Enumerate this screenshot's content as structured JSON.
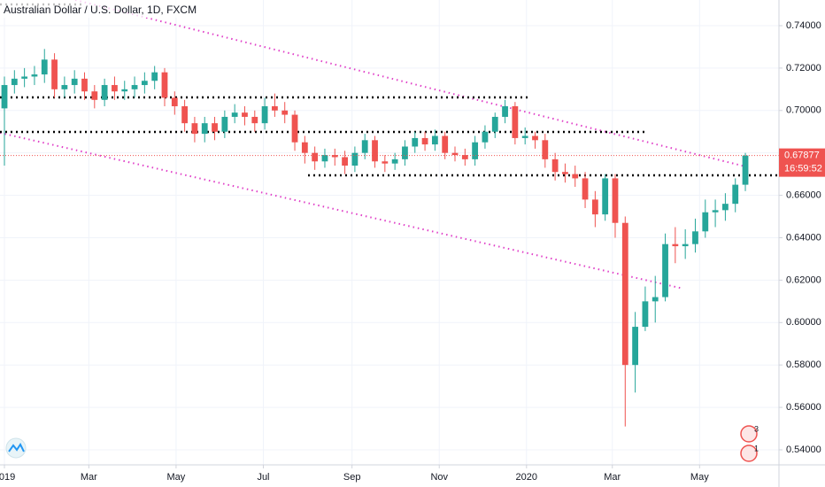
{
  "chart_data": {
    "type": "candlestick",
    "title": "Australian Dollar / U.S. Dollar, 1D, FXCM",
    "up_color": "#26a69a",
    "down_color": "#ef5350",
    "grid": true,
    "x": [
      0,
      7,
      14,
      21,
      28,
      35,
      42,
      49,
      56,
      63,
      70,
      77,
      84,
      91,
      98,
      105,
      112,
      119,
      126,
      133,
      140,
      147,
      154,
      161,
      168,
      175,
      182,
      189,
      196,
      203,
      210,
      217,
      224,
      231,
      238,
      245,
      252,
      259,
      266,
      273,
      280,
      287,
      294,
      301,
      308,
      315,
      322,
      329,
      336,
      343,
      350,
      357,
      364,
      371,
      378,
      385,
      392,
      399,
      406,
      413,
      420,
      427,
      434,
      441,
      448,
      455,
      462,
      469,
      476,
      483,
      490,
      497,
      504,
      511,
      518
    ],
    "opens": [
      0.701,
      0.712,
      0.715,
      0.716,
      0.717,
      0.724,
      0.71,
      0.712,
      0.715,
      0.709,
      0.705,
      0.712,
      0.709,
      0.71,
      0.712,
      0.714,
      0.718,
      0.706,
      0.702,
      0.694,
      0.689,
      0.694,
      0.69,
      0.697,
      0.699,
      0.697,
      0.694,
      0.702,
      0.7,
      0.698,
      0.685,
      0.68,
      0.676,
      0.679,
      0.678,
      0.674,
      0.68,
      0.686,
      0.676,
      0.675,
      0.677,
      0.683,
      0.687,
      0.684,
      0.688,
      0.68,
      0.679,
      0.677,
      0.685,
      0.69,
      0.697,
      0.702,
      0.687,
      0.688,
      0.686,
      0.677,
      0.671,
      0.67,
      0.668,
      0.658,
      0.651,
      0.668,
      0.647,
      0.58,
      0.598,
      0.61,
      0.612,
      0.637,
      0.636,
      0.637,
      0.643,
      0.652,
      0.653,
      0.656,
      0.665
    ],
    "highs": [
      0.716,
      0.719,
      0.72,
      0.721,
      0.729,
      0.727,
      0.716,
      0.719,
      0.718,
      0.712,
      0.715,
      0.716,
      0.714,
      0.716,
      0.718,
      0.721,
      0.72,
      0.709,
      0.705,
      0.697,
      0.697,
      0.697,
      0.7,
      0.703,
      0.702,
      0.7,
      0.706,
      0.708,
      0.704,
      0.7,
      0.688,
      0.683,
      0.682,
      0.682,
      0.681,
      0.683,
      0.689,
      0.688,
      0.679,
      0.68,
      0.686,
      0.69,
      0.69,
      0.691,
      0.69,
      0.683,
      0.682,
      0.688,
      0.693,
      0.699,
      0.705,
      0.704,
      0.692,
      0.69,
      0.689,
      0.68,
      0.675,
      0.674,
      0.671,
      0.662,
      0.67,
      0.67,
      0.65,
      0.605,
      0.617,
      0.622,
      0.642,
      0.645,
      0.644,
      0.649,
      0.658,
      0.658,
      0.661,
      0.668,
      0.68
    ],
    "lows": [
      0.674,
      0.708,
      0.711,
      0.712,
      0.713,
      0.706,
      0.706,
      0.708,
      0.705,
      0.701,
      0.702,
      0.705,
      0.705,
      0.706,
      0.708,
      0.71,
      0.702,
      0.698,
      0.69,
      0.685,
      0.685,
      0.686,
      0.687,
      0.694,
      0.693,
      0.69,
      0.691,
      0.697,
      0.694,
      0.681,
      0.675,
      0.672,
      0.673,
      0.674,
      0.67,
      0.671,
      0.677,
      0.673,
      0.671,
      0.672,
      0.674,
      0.68,
      0.681,
      0.681,
      0.677,
      0.676,
      0.674,
      0.674,
      0.682,
      0.687,
      0.694,
      0.684,
      0.684,
      0.682,
      0.673,
      0.667,
      0.666,
      0.664,
      0.654,
      0.645,
      0.648,
      0.64,
      0.551,
      0.567,
      0.596,
      0.6,
      0.61,
      0.628,
      0.63,
      0.633,
      0.64,
      0.645,
      0.648,
      0.652,
      0.662
    ],
    "closes": [
      0.712,
      0.715,
      0.716,
      0.717,
      0.724,
      0.71,
      0.712,
      0.715,
      0.709,
      0.705,
      0.712,
      0.709,
      0.71,
      0.712,
      0.714,
      0.718,
      0.706,
      0.702,
      0.694,
      0.689,
      0.694,
      0.69,
      0.697,
      0.699,
      0.697,
      0.694,
      0.702,
      0.7,
      0.698,
      0.685,
      0.68,
      0.676,
      0.679,
      0.678,
      0.674,
      0.68,
      0.686,
      0.676,
      0.675,
      0.677,
      0.683,
      0.687,
      0.684,
      0.688,
      0.68,
      0.679,
      0.677,
      0.685,
      0.69,
      0.697,
      0.702,
      0.687,
      0.688,
      0.686,
      0.677,
      0.671,
      0.67,
      0.668,
      0.658,
      0.651,
      0.668,
      0.647,
      0.58,
      0.598,
      0.61,
      0.612,
      0.637,
      0.636,
      0.637,
      0.643,
      0.652,
      0.653,
      0.656,
      0.665,
      0.67877
    ],
    "xlim": [
      -3.1,
      541.5
    ],
    "ylim": [
      0.5329,
      0.7521
    ],
    "xticks": [
      {
        "value": 0,
        "label": "2019"
      },
      {
        "value": 59,
        "label": "Mar"
      },
      {
        "value": 120,
        "label": "May"
      },
      {
        "value": 181,
        "label": "Jul"
      },
      {
        "value": 243,
        "label": "Sep"
      },
      {
        "value": 304,
        "label": "Nov"
      },
      {
        "value": 365,
        "label": "2020"
      },
      {
        "value": 425,
        "label": "Mar"
      },
      {
        "value": 486,
        "label": "May"
      }
    ],
    "yticks": [
      {
        "value": 0.54,
        "label": "0.54000"
      },
      {
        "value": 0.56,
        "label": "0.56000"
      },
      {
        "value": 0.58,
        "label": "0.58000"
      },
      {
        "value": 0.6,
        "label": "0.60000"
      },
      {
        "value": 0.62,
        "label": "0.62000"
      },
      {
        "value": 0.64,
        "label": "0.64000"
      },
      {
        "value": 0.66,
        "label": "0.66000"
      },
      {
        "value": 0.68,
        "label": "0.68000"
      },
      {
        "value": 0.7,
        "label": "0.70000"
      },
      {
        "value": 0.72,
        "label": "0.72000"
      },
      {
        "value": 0.74,
        "label": "0.74000"
      }
    ],
    "last_price": 0.67877,
    "countdown": "16:59:52",
    "event_counts": [
      "3",
      "1"
    ]
  }
}
